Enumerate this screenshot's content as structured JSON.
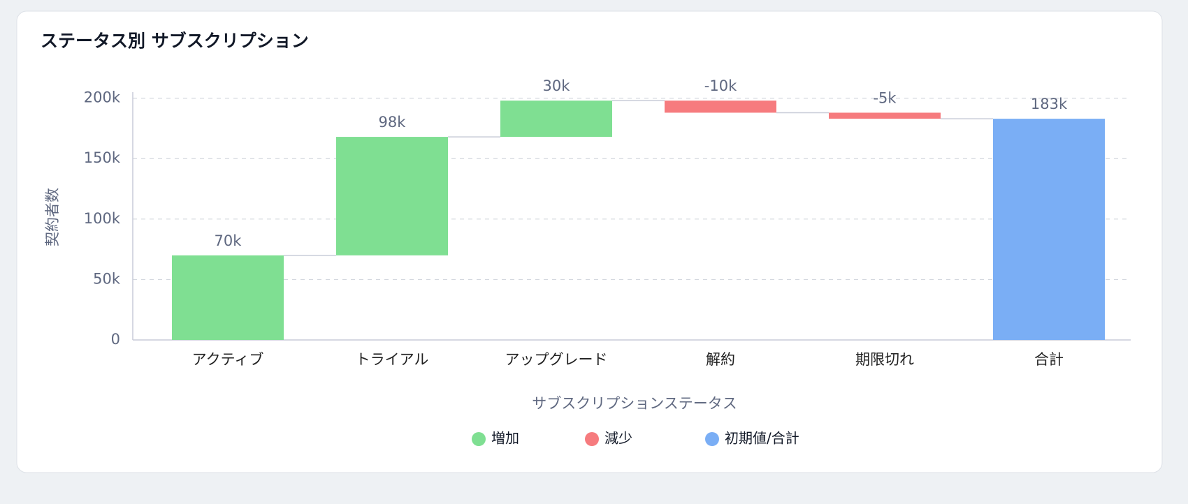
{
  "chart_data": {
    "type": "waterfall",
    "title": "ステータス別 サブスクリプション",
    "xlabel": "サブスクリプションステータス",
    "ylabel": "契約者数",
    "categories": [
      "アクティブ",
      "トライアル",
      "アップグレード",
      "解約",
      "期限切れ",
      "合計"
    ],
    "values": [
      70000,
      98000,
      30000,
      -10000,
      -5000,
      183000
    ],
    "value_labels": [
      "70k",
      "98k",
      "30k",
      "-10k",
      "-5k",
      "183k"
    ],
    "is_total": [
      false,
      false,
      false,
      false,
      false,
      true
    ],
    "colors": {
      "increase": "#7fdf92",
      "decrease": "#f67b7e",
      "total": "#7aaef5"
    },
    "legend": [
      {
        "name": "増加",
        "color": "#7fdf92"
      },
      {
        "name": "減少",
        "color": "#f67b7e"
      },
      {
        "name": "初期値/合計",
        "color": "#7aaef5"
      }
    ],
    "ylim": [
      0,
      205000
    ],
    "yticks": [
      0,
      {
        "value": 50000,
        "label": "50k"
      },
      {
        "value": 100000,
        "label": "100k"
      },
      {
        "value": 150000,
        "label": "150k"
      },
      {
        "value": 200000,
        "label": "200k"
      }
    ],
    "grid": true
  }
}
